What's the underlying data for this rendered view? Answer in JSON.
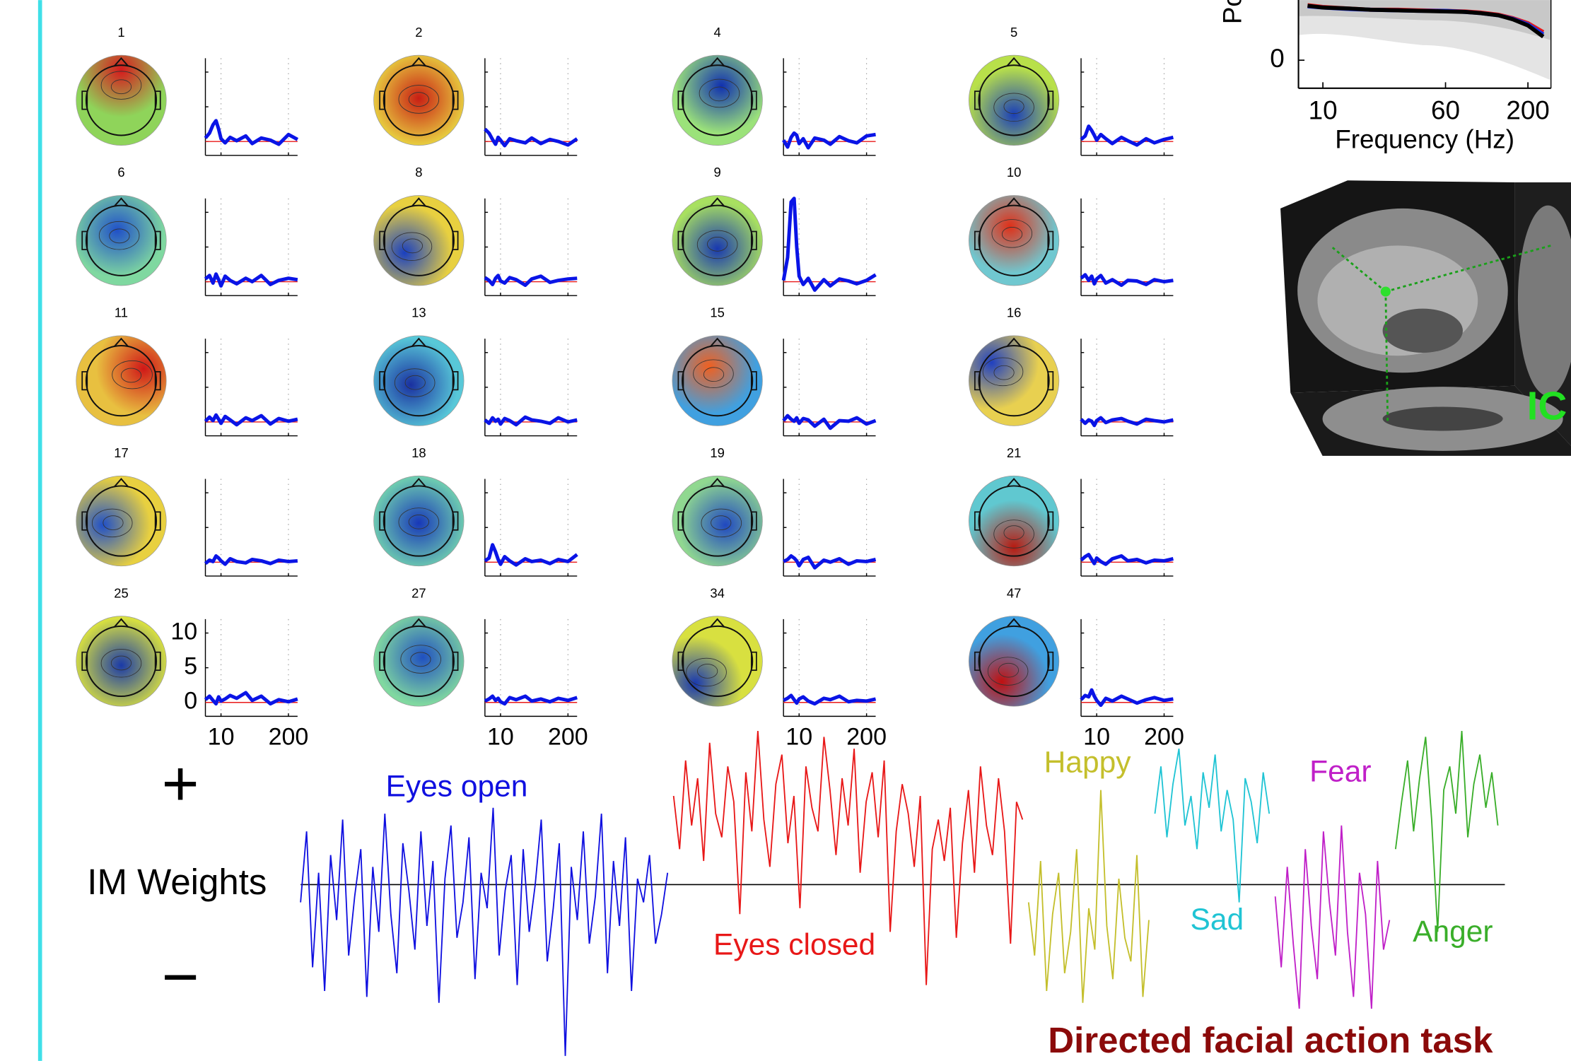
{
  "components": {
    "type": "line",
    "x": [
      5,
      6,
      7,
      8,
      9,
      10,
      12,
      15,
      20,
      30,
      40,
      60,
      90,
      130,
      200,
      300
    ],
    "xlim": [
      5,
      300
    ],
    "xscale": "log",
    "xticks": [
      10,
      200
    ],
    "ylim": [
      -2,
      12
    ],
    "yticks": [
      0,
      5,
      10
    ],
    "grid": true,
    "line_color": "#0a14e6",
    "baseline_color": "#e81818",
    "items": [
      {
        "label": "1",
        "map": [
          "#d7191c",
          "#8fd45a"
        ],
        "values": [
          0.5,
          1.2,
          2.4,
          3.0,
          1.8,
          0.4,
          -0.2,
          0.6,
          0.1,
          0.8,
          -0.3,
          0.5,
          0.2,
          -0.4,
          1.0,
          0.3
        ]
      },
      {
        "label": "2",
        "map": [
          "#c81e14",
          "#e8d040"
        ],
        "values": [
          1.8,
          1.2,
          0.3,
          -0.4,
          0.6,
          0.2,
          -0.6,
          0.4,
          0.1,
          -0.2,
          0.5,
          -0.3,
          0.3,
          0.0,
          -0.5,
          0.4
        ]
      },
      {
        "label": "4",
        "map": [
          "#1030b0",
          "#9be27a"
        ],
        "values": [
          0.2,
          -0.8,
          0.6,
          1.2,
          0.9,
          -0.3,
          0.4,
          -0.9,
          0.5,
          0.2,
          -0.4,
          0.7,
          0.1,
          -0.2,
          0.8,
          1.0
        ]
      },
      {
        "label": "5",
        "map": [
          "#1a3fb8",
          "#b8e04a"
        ],
        "values": [
          0.3,
          0.8,
          2.2,
          1.6,
          0.9,
          0.2,
          1.0,
          0.4,
          -0.3,
          0.6,
          0.1,
          -0.5,
          0.4,
          -0.2,
          0.3,
          0.6
        ]
      },
      {
        "label": "6",
        "map": [
          "#2050c8",
          "#7fd8a0"
        ],
        "values": [
          0.4,
          0.9,
          -0.2,
          1.1,
          0.3,
          -0.6,
          0.8,
          0.2,
          -0.3,
          0.5,
          0.0,
          0.9,
          -0.4,
          0.2,
          0.5,
          0.3
        ]
      },
      {
        "label": "8",
        "map": [
          "#1a40c0",
          "#e8d040"
        ],
        "values": [
          0.6,
          0.2,
          -0.4,
          0.5,
          0.9,
          0.1,
          -0.2,
          0.6,
          0.3,
          -0.5,
          0.4,
          0.8,
          -0.1,
          0.2,
          0.4,
          0.5
        ]
      },
      {
        "label": "9",
        "map": [
          "#1838b0",
          "#a8e060"
        ],
        "values": [
          0.2,
          3.5,
          11.5,
          12.0,
          5.0,
          0.8,
          -0.4,
          0.5,
          -1.2,
          0.3,
          -0.6,
          0.4,
          0.1,
          -0.3,
          0.2,
          1.0
        ]
      },
      {
        "label": "10",
        "map": [
          "#e03018",
          "#70c8d0"
        ],
        "values": [
          0.5,
          1.0,
          0.2,
          0.8,
          -0.3,
          0.4,
          0.9,
          -0.2,
          0.3,
          -0.5,
          0.2,
          0.1,
          -0.4,
          0.3,
          0.0,
          0.2
        ]
      },
      {
        "label": "11",
        "map": [
          "#d01818",
          "#e8c040"
        ],
        "values": [
          0.1,
          0.7,
          0.2,
          1.0,
          0.4,
          -0.2,
          0.8,
          0.3,
          -0.4,
          0.6,
          0.2,
          0.9,
          -0.3,
          0.5,
          0.1,
          0.4
        ]
      },
      {
        "label": "13",
        "map": [
          "#1a30a0",
          "#58c8d8"
        ],
        "values": [
          0.3,
          -0.2,
          0.6,
          0.1,
          0.4,
          -0.3,
          0.5,
          0.2,
          -0.4,
          0.7,
          0.3,
          0.1,
          -0.2,
          0.6,
          0.0,
          0.3
        ]
      },
      {
        "label": "15",
        "map": [
          "#f06020",
          "#40a0e0"
        ],
        "values": [
          0.2,
          0.9,
          0.4,
          0.1,
          0.6,
          -0.2,
          0.5,
          0.3,
          -0.6,
          0.4,
          -0.9,
          0.2,
          0.1,
          0.6,
          -0.3,
          0.2
        ]
      },
      {
        "label": "16",
        "map": [
          "#2040c0",
          "#e8d050"
        ],
        "values": [
          0.4,
          -0.2,
          0.3,
          0.1,
          -0.5,
          0.2,
          0.6,
          -0.1,
          0.3,
          0.5,
          0.1,
          -0.3,
          0.4,
          0.2,
          0.0,
          0.3
        ]
      },
      {
        "label": "17",
        "map": [
          "#2050c8",
          "#e8d040"
        ],
        "values": [
          -0.2,
          0.3,
          0.1,
          0.9,
          0.6,
          0.2,
          -0.3,
          0.5,
          0.1,
          -0.1,
          0.4,
          0.2,
          -0.2,
          0.3,
          0.1,
          0.2
        ]
      },
      {
        "label": "18",
        "map": [
          "#1838b8",
          "#70d0b0"
        ],
        "values": [
          0.2,
          0.6,
          2.5,
          1.5,
          0.4,
          -0.3,
          0.8,
          0.2,
          -0.4,
          0.5,
          0.1,
          0.3,
          -0.2,
          0.4,
          0.1,
          1.1
        ]
      },
      {
        "label": "19",
        "map": [
          "#2048c0",
          "#90d890"
        ],
        "values": [
          0.1,
          0.4,
          0.9,
          0.6,
          0.2,
          -0.5,
          0.4,
          0.7,
          -0.8,
          0.3,
          0.0,
          0.5,
          -0.3,
          0.2,
          0.1,
          0.4
        ]
      },
      {
        "label": "21",
        "map": [
          "#b81a10",
          "#60c8d0"
        ],
        "values": [
          0.3,
          0.8,
          1.1,
          0.4,
          -0.2,
          0.6,
          0.1,
          -0.3,
          0.5,
          0.9,
          0.2,
          0.4,
          -0.1,
          0.3,
          0.2,
          0.5
        ]
      },
      {
        "label": "25",
        "map": [
          "#1a3aa8",
          "#d8e040"
        ],
        "values": [
          0.4,
          0.9,
          0.3,
          -0.2,
          0.8,
          0.2,
          0.5,
          1.0,
          0.6,
          1.4,
          0.3,
          0.9,
          -0.2,
          0.4,
          0.1,
          0.5
        ]
      },
      {
        "label": "27",
        "map": [
          "#2050c0",
          "#80d8a0"
        ],
        "values": [
          0.2,
          0.5,
          0.9,
          0.3,
          0.6,
          0.1,
          -0.2,
          0.7,
          0.4,
          0.9,
          0.2,
          0.5,
          0.1,
          0.6,
          0.3,
          0.7
        ]
      },
      {
        "label": "34",
        "map": [
          "#1838b0",
          "#d8e040"
        ],
        "values": [
          0.3,
          0.6,
          1.0,
          0.4,
          -0.1,
          0.5,
          0.8,
          0.2,
          -0.2,
          0.6,
          0.4,
          0.9,
          0.1,
          0.3,
          0.2,
          0.5
        ]
      },
      {
        "label": "47",
        "map": [
          "#c01010",
          "#40a0e0"
        ],
        "values": [
          0.4,
          1.0,
          0.8,
          1.8,
          0.9,
          0.3,
          -0.4,
          0.6,
          0.2,
          0.9,
          0.5,
          -0.1,
          0.4,
          0.7,
          0.3,
          0.5
        ]
      }
    ]
  },
  "spectrum": {
    "type": "line",
    "x": [
      8,
      10,
      15,
      20,
      30,
      40,
      60,
      80,
      100,
      130,
      160,
      200,
      250
    ],
    "xlim": [
      7,
      280
    ],
    "xscale": "log",
    "xticks": [
      10,
      60,
      200
    ],
    "ylim": [
      -5,
      20
    ],
    "yticks": [
      0
    ],
    "xlabel": "Frequency (Hz)",
    "ylabel": "Power",
    "series": [
      {
        "color": "#e81818",
        "values": [
          9.8,
          9.5,
          9.2,
          9.0,
          9.0,
          8.9,
          8.8,
          8.7,
          8.5,
          8.1,
          7.5,
          6.6,
          5.0
        ]
      },
      {
        "color": "#1a30e0",
        "values": [
          9.6,
          9.4,
          9.1,
          9.0,
          8.9,
          8.8,
          8.8,
          8.6,
          8.4,
          8.0,
          7.4,
          6.4,
          4.6
        ]
      },
      {
        "color": "#000000",
        "values": [
          9.7,
          9.4,
          9.2,
          9.0,
          8.9,
          8.8,
          8.7,
          8.6,
          8.4,
          8.0,
          7.3,
          6.2,
          4.2
        ]
      }
    ]
  },
  "brain": {
    "label": "IC"
  },
  "im_weights": {
    "type": "line",
    "ylabel": "IM Weights",
    "plus": "+",
    "minus": "−",
    "ylim": [
      -3,
      3
    ],
    "task_label": "Directed facial action task",
    "series": [
      {
        "name": "Eyes open",
        "color": "#1010e0",
        "values": [
          -0.3,
          0.9,
          -1.4,
          0.2,
          -1.8,
          0.5,
          -0.6,
          1.1,
          -1.2,
          -0.2,
          0.6,
          -1.9,
          0.3,
          -0.8,
          1.2,
          -0.5,
          -1.5,
          0.7,
          -0.1,
          -1.1,
          0.9,
          -0.7,
          0.4,
          -2.0,
          0.1,
          1.0,
          -0.9,
          -0.3,
          0.8,
          -1.6,
          0.2,
          -0.4,
          1.3,
          -1.2,
          -0.1,
          0.5,
          -1.7,
          0.6,
          -0.8,
          0.0,
          1.1,
          -1.3,
          -0.4,
          0.7,
          -2.9,
          0.3,
          -0.6,
          0.9,
          -1.0,
          -0.2,
          1.2,
          -1.5,
          0.4,
          -0.7,
          0.8,
          -1.8,
          0.1,
          -0.3,
          0.5,
          -1.0,
          -0.5,
          0.2
        ]
      },
      {
        "name": "Eyes closed",
        "color": "#e81818",
        "values": [
          1.5,
          0.6,
          2.1,
          1.0,
          1.8,
          0.4,
          2.4,
          1.2,
          0.8,
          2.0,
          1.4,
          -0.5,
          1.9,
          0.9,
          2.6,
          1.1,
          0.3,
          1.7,
          2.2,
          0.7,
          1.5,
          -0.4,
          2.0,
          1.3,
          0.9,
          2.5,
          1.6,
          0.5,
          1.8,
          1.0,
          2.3,
          0.2,
          1.4,
          1.9,
          0.8,
          2.1,
          -0.8,
          0.9,
          1.7,
          1.2,
          0.3,
          1.5,
          -1.7,
          0.6,
          1.1,
          0.4,
          1.3,
          -0.9,
          0.7,
          1.6,
          0.2,
          2.0,
          1.0,
          0.5,
          1.8,
          0.9,
          -1.0,
          1.4,
          1.1
        ]
      },
      {
        "name": "Happy",
        "color": "#c4bf2c",
        "values": [
          -0.3,
          -1.2,
          0.4,
          -1.8,
          -0.5,
          0.2,
          -1.5,
          -0.8,
          0.6,
          -2.0,
          -0.4,
          -1.1,
          1.6,
          -0.7,
          -1.6,
          0.1,
          -0.9,
          -1.3,
          0.5,
          -1.9,
          -0.6
        ]
      },
      {
        "name": "Sad",
        "color": "#20c4d4",
        "values": [
          1.2,
          2.0,
          0.8,
          1.7,
          2.3,
          1.0,
          1.5,
          0.6,
          1.9,
          1.3,
          2.2,
          0.9,
          1.6,
          1.1,
          -0.3,
          1.8,
          1.4,
          0.7,
          1.9,
          1.2
        ]
      },
      {
        "name": "Fear",
        "color": "#c020c8",
        "values": [
          -0.2,
          -1.4,
          0.3,
          -1.0,
          -2.1,
          0.6,
          -0.7,
          -1.6,
          0.9,
          -0.3,
          -1.2,
          1.0,
          -0.8,
          -1.9,
          0.2,
          -0.5,
          -2.1,
          0.4,
          -1.1,
          -0.6
        ]
      },
      {
        "name": "Anger",
        "color": "#3aae2a",
        "values": [
          0.6,
          1.4,
          2.1,
          0.9,
          1.8,
          2.5,
          1.1,
          -0.8,
          1.6,
          2.0,
          1.2,
          2.6,
          0.8,
          1.7,
          2.2,
          1.3,
          1.9,
          1.0
        ]
      }
    ]
  }
}
